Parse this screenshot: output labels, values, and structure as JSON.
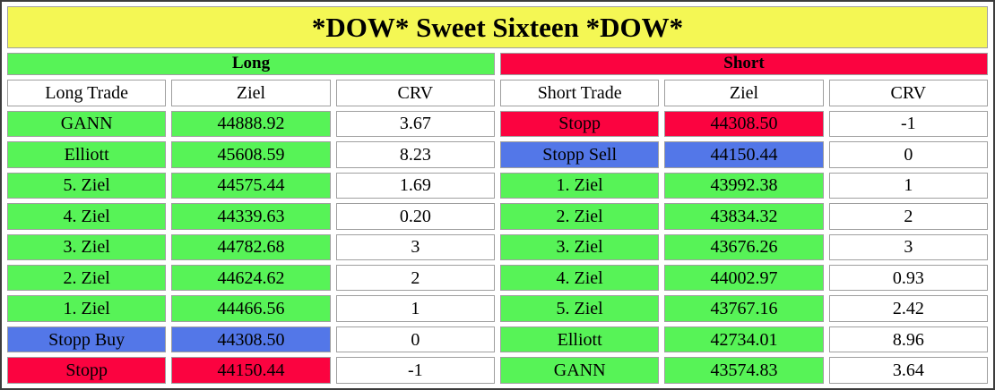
{
  "title": "*DOW* Sweet Sixteen *DOW*",
  "colors": {
    "title_background": "#f4f754",
    "green": "#57f357",
    "red": "#fb0340",
    "blue": "#5377e8",
    "cell_border": "#9f9f9f",
    "outer_border": "#3c3c3c"
  },
  "long": {
    "section_label": "Long",
    "headers": [
      "Long Trade",
      "Ziel",
      "CRV"
    ],
    "rows": [
      {
        "trade": "GANN",
        "ziel": "44888.92",
        "crv": "3.67",
        "color": "green"
      },
      {
        "trade": "Elliott",
        "ziel": "45608.59",
        "crv": "8.23",
        "color": "green"
      },
      {
        "trade": "5. Ziel",
        "ziel": "44575.44",
        "crv": "1.69",
        "color": "green"
      },
      {
        "trade": "4. Ziel",
        "ziel": "44339.63",
        "crv": "0.20",
        "color": "green"
      },
      {
        "trade": "3. Ziel",
        "ziel": "44782.68",
        "crv": "3",
        "color": "green"
      },
      {
        "trade": "2. Ziel",
        "ziel": "44624.62",
        "crv": "2",
        "color": "green"
      },
      {
        "trade": "1. Ziel",
        "ziel": "44466.56",
        "crv": "1",
        "color": "green"
      },
      {
        "trade": "Stopp Buy",
        "ziel": "44308.50",
        "crv": "0",
        "color": "blue"
      },
      {
        "trade": "Stopp",
        "ziel": "44150.44",
        "crv": "-1",
        "color": "red"
      }
    ]
  },
  "short": {
    "section_label": "Short",
    "headers": [
      "Short Trade",
      "Ziel",
      "CRV"
    ],
    "rows": [
      {
        "trade": "Stopp",
        "ziel": "44308.50",
        "crv": "-1",
        "color": "red"
      },
      {
        "trade": "Stopp Sell",
        "ziel": "44150.44",
        "crv": "0",
        "color": "blue"
      },
      {
        "trade": "1. Ziel",
        "ziel": "43992.38",
        "crv": "1",
        "color": "green"
      },
      {
        "trade": "2. Ziel",
        "ziel": "43834.32",
        "crv": "2",
        "color": "green"
      },
      {
        "trade": "3. Ziel",
        "ziel": "43676.26",
        "crv": "3",
        "color": "green"
      },
      {
        "trade": "4. Ziel",
        "ziel": "44002.97",
        "crv": "0.93",
        "color": "green"
      },
      {
        "trade": "5. Ziel",
        "ziel": "43767.16",
        "crv": "2.42",
        "color": "green"
      },
      {
        "trade": "Elliott",
        "ziel": "42734.01",
        "crv": "8.96",
        "color": "green"
      },
      {
        "trade": "GANN",
        "ziel": "43574.83",
        "crv": "3.64",
        "color": "green"
      }
    ]
  }
}
